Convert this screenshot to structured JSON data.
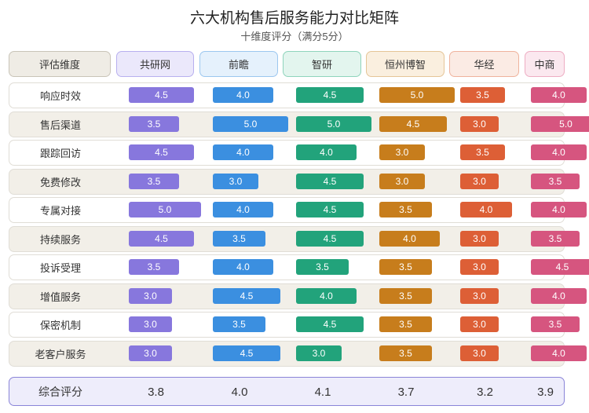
{
  "title": "六大机构售后服务能力对比矩阵",
  "subtitle": "十维度评分（满分5分）",
  "header_dim_label": "评估维度",
  "summary_label": "综合评分",
  "chart_data": {
    "type": "table",
    "max_score": 5,
    "categories": [
      "响应时效",
      "售后渠道",
      "跟踪回访",
      "免费修改",
      "专属对接",
      "持续服务",
      "投诉受理",
      "增值服务",
      "保密机制",
      "老客户服务"
    ],
    "series": [
      {
        "name": "共研网",
        "color": "#8777dd",
        "header_bg": "#ebe8fb",
        "header_border": "#b8b0ef",
        "values": [
          4.5,
          3.5,
          4.5,
          3.5,
          5.0,
          4.5,
          3.5,
          3.0,
          3.0,
          3.0
        ],
        "overall": "3.8"
      },
      {
        "name": "前瞻",
        "color": "#3b8fe0",
        "header_bg": "#e5f1fc",
        "header_border": "#9cc7ef",
        "values": [
          4.0,
          5.0,
          4.0,
          3.0,
          4.0,
          3.5,
          4.0,
          4.5,
          3.5,
          4.5
        ],
        "overall": "4.0"
      },
      {
        "name": "智研",
        "color": "#22a37b",
        "header_bg": "#e3f5ee",
        "header_border": "#8fd4bc",
        "values": [
          4.5,
          5.0,
          4.0,
          4.5,
          4.5,
          4.5,
          3.5,
          4.0,
          4.5,
          3.0
        ],
        "overall": "4.1"
      },
      {
        "name": "恒州博智",
        "color": "#c77d1c",
        "header_bg": "#faefdf",
        "header_border": "#e5c597",
        "values": [
          5.0,
          4.5,
          3.0,
          3.0,
          3.5,
          4.0,
          3.5,
          3.5,
          3.5,
          3.5
        ],
        "overall": "3.7"
      },
      {
        "name": "华经",
        "color": "#dd5f36",
        "header_bg": "#fbebe4",
        "header_border": "#efb39d",
        "values": [
          3.5,
          3.0,
          3.5,
          3.0,
          4.0,
          3.0,
          3.0,
          3.0,
          3.0,
          3.0
        ],
        "overall": "3.2"
      },
      {
        "name": "中商",
        "color": "#d6557f",
        "header_bg": "#fbe8ef",
        "header_border": "#eeadc3",
        "values": [
          4.0,
          5.0,
          4.0,
          3.5,
          4.0,
          3.5,
          4.5,
          4.0,
          3.5,
          4.0
        ],
        "overall": "3.9"
      }
    ]
  }
}
